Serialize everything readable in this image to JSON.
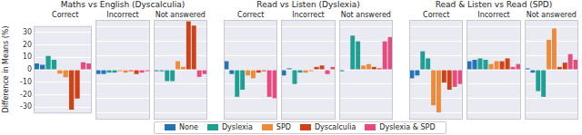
{
  "chart_data": [
    {
      "type": "bar",
      "title": "Maths vs English (Dyscalculia)",
      "y_label": "Difference in Means (%)",
      "ylim": [
        -35,
        35
      ],
      "yticks": [
        -30,
        -20,
        -10,
        0,
        10,
        20,
        30
      ],
      "grid": true,
      "legend": "bottom",
      "tick_labels": "y",
      "subplots": [
        {
          "title": "Correct",
          "categories": [
            null,
            null
          ],
          "series": [
            {
              "name": "None",
              "color": "#2374b5",
              "values": [
                5,
                4
              ]
            },
            {
              "name": "Dyslexia",
              "color": "#1f9e93",
              "values": [
                11,
                8
              ]
            },
            {
              "name": "SPD",
              "color": "#ef8a3a",
              "values": [
                -3,
                -6
              ]
            },
            {
              "name": "Dyscalculia",
              "color": "#cf4116",
              "values": [
                -32,
                -23
              ]
            },
            {
              "name": "Dyslexia & SPD",
              "color": "#e64a7e",
              "values": [
                6,
                5
              ]
            }
          ]
        },
        {
          "title": "Incorrect",
          "categories": [
            null,
            null
          ],
          "series": [
            {
              "name": "None",
              "color": "#2374b5",
              "values": [
                -3,
                -3
              ]
            },
            {
              "name": "Dyslexia",
              "color": "#1f9e93",
              "values": [
                -2,
                -2
              ]
            },
            {
              "name": "SPD",
              "color": "#ef8a3a",
              "values": [
                -1,
                -2
              ]
            },
            {
              "name": "Dyscalculia",
              "color": "#cf4116",
              "values": [
                -1,
                -3
              ]
            },
            {
              "name": "Dyslexia & SPD",
              "color": "#e64a7e",
              "values": [
                -2,
                -1
              ]
            }
          ]
        },
        {
          "title": "Not answered",
          "categories": [
            null,
            null
          ],
          "series": [
            {
              "name": "None",
              "color": "#2374b5",
              "values": [
                -1,
                -1
              ]
            },
            {
              "name": "Dyslexia",
              "color": "#1f9e93",
              "values": [
                -8,
                -8
              ]
            },
            {
              "name": "SPD",
              "color": "#ef8a3a",
              "values": [
                6,
                2
              ]
            },
            {
              "name": "Dyscalculia",
              "color": "#cf4116",
              "values": [
                34,
                31
              ]
            },
            {
              "name": "Dyslexia & SPD",
              "color": "#e64a7e",
              "values": [
                -5,
                -3
              ]
            }
          ]
        }
      ]
    },
    {
      "type": "bar",
      "title": "Read vs Listen (Dyslexia)",
      "ylim": [
        -35,
        35
      ],
      "yticks": [
        -30,
        -20,
        -10,
        0,
        10,
        20,
        30
      ],
      "grid": true,
      "tick_labels": false,
      "subplots": [
        {
          "title": "Correct",
          "categories": [
            null,
            null
          ],
          "series": [
            {
              "name": "None",
              "color": "#2374b5",
              "values": [
                6,
                -3
              ]
            },
            {
              "name": "Dyslexia",
              "color": "#1f9e93",
              "values": [
                -19,
                -14
              ]
            },
            {
              "name": "SPD",
              "color": "#ef8a3a",
              "values": [
                -4,
                -6
              ]
            },
            {
              "name": "Dyscalculia",
              "color": "#cf4116",
              "values": [
                -2,
                -1
              ]
            },
            {
              "name": "Dyslexia & SPD",
              "color": "#e64a7e",
              "values": [
                -19,
                -20
              ]
            }
          ]
        },
        {
          "title": "Incorrect",
          "categories": [
            null,
            null
          ],
          "series": [
            {
              "name": "None",
              "color": "#2374b5",
              "values": [
                -4,
                1
              ]
            },
            {
              "name": "Dyslexia",
              "color": "#1f9e93",
              "values": [
                -10,
                -2
              ]
            },
            {
              "name": "SPD",
              "color": "#ef8a3a",
              "values": [
                -2,
                -1
              ]
            },
            {
              "name": "Dyscalculia",
              "color": "#cf4116",
              "values": [
                2,
                3
              ]
            },
            {
              "name": "Dyslexia & SPD",
              "color": "#e64a7e",
              "values": [
                -3,
                2
              ]
            }
          ]
        },
        {
          "title": "Not answered",
          "categories": [
            null,
            null
          ],
          "series": [
            {
              "name": "None",
              "color": "#2374b5",
              "values": [
                -1,
                0
              ]
            },
            {
              "name": "Dyslexia",
              "color": "#1f9e93",
              "values": [
                24,
                20
              ]
            },
            {
              "name": "SPD",
              "color": "#ef8a3a",
              "values": [
                3,
                4
              ]
            },
            {
              "name": "Dyscalculia",
              "color": "#cf4116",
              "values": [
                2,
                1
              ]
            },
            {
              "name": "Dyslexia & SPD",
              "color": "#e64a7e",
              "values": [
                20,
                23
              ]
            }
          ]
        }
      ]
    },
    {
      "type": "bar",
      "title": "Read & Listen vs Read (SPD)",
      "ylim": [
        -35,
        35
      ],
      "yticks": [
        -30,
        -20,
        -10,
        0,
        10,
        20,
        30
      ],
      "grid": true,
      "tick_labels": false,
      "subplots": [
        {
          "title": "Correct",
          "categories": [
            null,
            null
          ],
          "series": [
            {
              "name": "None",
              "color": "#2374b5",
              "values": [
                -6,
                -4
              ]
            },
            {
              "name": "Dyslexia",
              "color": "#1f9e93",
              "values": [
                13,
                8
              ]
            },
            {
              "name": "SPD",
              "color": "#ef8a3a",
              "values": [
                -25,
                -30
              ]
            },
            {
              "name": "Dyscalculia",
              "color": "#cf4116",
              "values": [
                -9,
                -14
              ]
            },
            {
              "name": "Dyslexia & SPD",
              "color": "#e64a7e",
              "values": [
                -12,
                -10
              ]
            }
          ]
        },
        {
          "title": "Incorrect",
          "categories": [
            null,
            null
          ],
          "series": [
            {
              "name": "None",
              "color": "#2374b5",
              "values": [
                6,
                7
              ]
            },
            {
              "name": "Dyslexia",
              "color": "#1f9e93",
              "values": [
                8,
                7
              ]
            },
            {
              "name": "SPD",
              "color": "#ef8a3a",
              "values": [
                4,
                6
              ]
            },
            {
              "name": "Dyscalculia",
              "color": "#cf4116",
              "values": [
                6,
                8
              ]
            },
            {
              "name": "Dyslexia & SPD",
              "color": "#e64a7e",
              "values": [
                2,
                4
              ]
            }
          ]
        },
        {
          "title": "Not answered",
          "categories": [
            null,
            null
          ],
          "series": [
            {
              "name": "None",
              "color": "#2374b5",
              "values": [
                1,
                -2
              ]
            },
            {
              "name": "Dyslexia",
              "color": "#1f9e93",
              "values": [
                -15,
                -19
              ]
            },
            {
              "name": "SPD",
              "color": "#ef8a3a",
              "values": [
                21,
                29
              ]
            },
            {
              "name": "Dyscalculia",
              "color": "#cf4116",
              "values": [
                2,
                5
              ]
            },
            {
              "name": "Dyslexia & SPD",
              "color": "#e64a7e",
              "values": [
                11,
                7
              ]
            }
          ]
        }
      ]
    }
  ]
}
